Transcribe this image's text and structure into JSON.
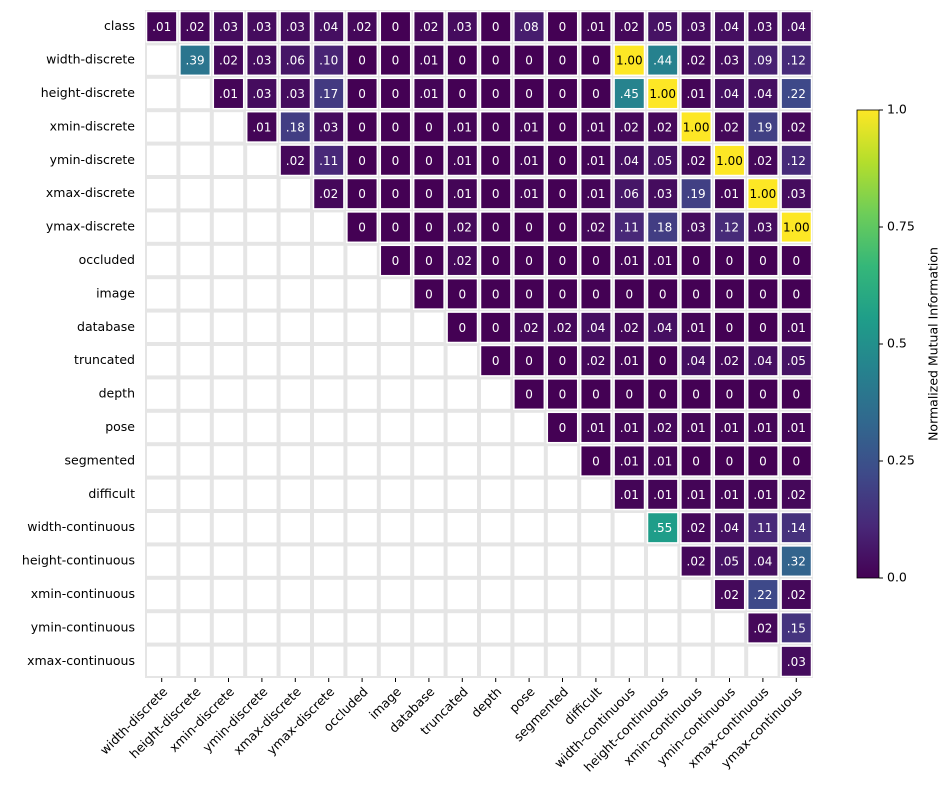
{
  "chart_data": {
    "type": "heatmap",
    "rows": [
      "class",
      "width-discrete",
      "height-discrete",
      "xmin-discrete",
      "ymin-discrete",
      "xmax-discrete",
      "ymax-discrete",
      "occluded",
      "image",
      "database",
      "truncated",
      "depth",
      "pose",
      "segmented",
      "difficult",
      "width-continuous",
      "height-continuous",
      "xmin-continuous",
      "ymin-continuous",
      "xmax-continuous"
    ],
    "columns": [
      "width-discrete",
      "height-discrete",
      "xmin-discrete",
      "ymin-discrete",
      "xmax-discrete",
      "ymax-discrete",
      "occluded",
      "image",
      "database",
      "truncated",
      "depth",
      "pose",
      "segmented",
      "difficult",
      "width-continuous",
      "height-continuous",
      "xmin-continuous",
      "ymin-continuous",
      "xmax-continuous",
      "ymax-continuous"
    ],
    "values": [
      [
        0.01,
        0.02,
        0.03,
        0.03,
        0.03,
        0.04,
        0.02,
        0,
        0.02,
        0.03,
        0,
        0.08,
        0,
        0.01,
        0.02,
        0.05,
        0.03,
        0.04,
        0.03,
        0.04
      ],
      [
        null,
        0.39,
        0.02,
        0.03,
        0.06,
        0.1,
        0,
        0,
        0.01,
        0,
        0,
        0,
        0,
        0,
        1.0,
        0.44,
        0.02,
        0.03,
        0.09,
        0.12
      ],
      [
        null,
        null,
        0.01,
        0.03,
        0.03,
        0.17,
        0,
        0,
        0.01,
        0,
        0,
        0,
        0,
        0,
        0.45,
        1.0,
        0.01,
        0.04,
        0.04,
        0.22
      ],
      [
        null,
        null,
        null,
        0.01,
        0.18,
        0.03,
        0,
        0,
        0,
        0.01,
        0,
        0.01,
        0,
        0.01,
        0.02,
        0.02,
        1.0,
        0.02,
        0.19,
        0.02
      ],
      [
        null,
        null,
        null,
        null,
        0.02,
        0.11,
        0,
        0,
        0,
        0.01,
        0,
        0.01,
        0,
        0.01,
        0.04,
        0.05,
        0.02,
        1.0,
        0.02,
        0.12
      ],
      [
        null,
        null,
        null,
        null,
        null,
        0.02,
        0,
        0,
        0,
        0.01,
        0,
        0.01,
        0,
        0.01,
        0.06,
        0.03,
        0.19,
        0.01,
        1.0,
        0.03
      ],
      [
        null,
        null,
        null,
        null,
        null,
        null,
        0,
        0,
        0,
        0.02,
        0,
        0,
        0,
        0.02,
        0.11,
        0.18,
        0.03,
        0.12,
        0.03,
        1.0
      ],
      [
        null,
        null,
        null,
        null,
        null,
        null,
        null,
        0,
        0,
        0.02,
        0,
        0,
        0,
        0,
        0.01,
        0.01,
        0,
        0,
        0,
        0
      ],
      [
        null,
        null,
        null,
        null,
        null,
        null,
        null,
        null,
        0,
        0,
        0,
        0,
        0,
        0,
        0,
        0,
        0,
        0,
        0,
        0
      ],
      [
        null,
        null,
        null,
        null,
        null,
        null,
        null,
        null,
        null,
        0,
        0,
        0.02,
        0.02,
        0.04,
        0.02,
        0.04,
        0.01,
        0,
        0,
        0.01
      ],
      [
        null,
        null,
        null,
        null,
        null,
        null,
        null,
        null,
        null,
        null,
        0,
        0,
        0,
        0.02,
        0.01,
        0,
        0.04,
        0.02,
        0.04,
        0.05
      ],
      [
        null,
        null,
        null,
        null,
        null,
        null,
        null,
        null,
        null,
        null,
        null,
        0,
        0,
        0,
        0,
        0,
        0,
        0,
        0,
        0
      ],
      [
        null,
        null,
        null,
        null,
        null,
        null,
        null,
        null,
        null,
        null,
        null,
        null,
        0,
        0.01,
        0.01,
        0.02,
        0.01,
        0.01,
        0.01,
        0.01
      ],
      [
        null,
        null,
        null,
        null,
        null,
        null,
        null,
        null,
        null,
        null,
        null,
        null,
        null,
        0,
        0.01,
        0.01,
        0,
        0,
        0,
        0
      ],
      [
        null,
        null,
        null,
        null,
        null,
        null,
        null,
        null,
        null,
        null,
        null,
        null,
        null,
        null,
        0.01,
        0.01,
        0.01,
        0.01,
        0.01,
        0.02
      ],
      [
        null,
        null,
        null,
        null,
        null,
        null,
        null,
        null,
        null,
        null,
        null,
        null,
        null,
        null,
        null,
        0.55,
        0.02,
        0.04,
        0.11,
        0.14
      ],
      [
        null,
        null,
        null,
        null,
        null,
        null,
        null,
        null,
        null,
        null,
        null,
        null,
        null,
        null,
        null,
        null,
        0.02,
        0.05,
        0.04,
        0.32
      ],
      [
        null,
        null,
        null,
        null,
        null,
        null,
        null,
        null,
        null,
        null,
        null,
        null,
        null,
        null,
        null,
        null,
        null,
        0.02,
        0.22,
        0.02
      ],
      [
        null,
        null,
        null,
        null,
        null,
        null,
        null,
        null,
        null,
        null,
        null,
        null,
        null,
        null,
        null,
        null,
        null,
        null,
        0.02,
        0.15
      ],
      [
        null,
        null,
        null,
        null,
        null,
        null,
        null,
        null,
        null,
        null,
        null,
        null,
        null,
        null,
        null,
        null,
        null,
        null,
        null,
        0.03
      ]
    ],
    "value_labels": [
      [
        ".01",
        ".02",
        ".03",
        ".03",
        ".03",
        ".04",
        ".02",
        "0",
        ".02",
        ".03",
        "0",
        ".08",
        "0",
        ".01",
        ".02",
        ".05",
        ".03",
        ".04",
        ".03",
        ".04"
      ],
      [
        null,
        ".39",
        ".02",
        ".03",
        ".06",
        ".10",
        "0",
        "0",
        ".01",
        "0",
        "0",
        "0",
        "0",
        "0",
        "1.00",
        ".44",
        ".02",
        ".03",
        ".09",
        ".12"
      ],
      [
        null,
        null,
        ".01",
        ".03",
        ".03",
        ".17",
        "0",
        "0",
        ".01",
        "0",
        "0",
        "0",
        "0",
        "0",
        ".45",
        "1.00",
        ".01",
        ".04",
        ".04",
        ".22"
      ],
      [
        null,
        null,
        null,
        ".01",
        ".18",
        ".03",
        "0",
        "0",
        "0",
        ".01",
        "0",
        ".01",
        "0",
        ".01",
        ".02",
        ".02",
        "1.00",
        ".02",
        ".19",
        ".02"
      ],
      [
        null,
        null,
        null,
        null,
        ".02",
        ".11",
        "0",
        "0",
        "0",
        ".01",
        "0",
        ".01",
        "0",
        ".01",
        ".04",
        ".05",
        ".02",
        "1.00",
        ".02",
        ".12"
      ],
      [
        null,
        null,
        null,
        null,
        null,
        ".02",
        "0",
        "0",
        "0",
        ".01",
        "0",
        ".01",
        "0",
        ".01",
        ".06",
        ".03",
        ".19",
        ".01",
        "1.00",
        ".03"
      ],
      [
        null,
        null,
        null,
        null,
        null,
        null,
        "0",
        "0",
        "0",
        ".02",
        "0",
        "0",
        "0",
        ".02",
        ".11",
        ".18",
        ".03",
        ".12",
        ".03",
        "1.00"
      ],
      [
        null,
        null,
        null,
        null,
        null,
        null,
        null,
        "0",
        "0",
        ".02",
        "0",
        "0",
        "0",
        "0",
        ".01",
        ".01",
        "0",
        "0",
        "0",
        "0"
      ],
      [
        null,
        null,
        null,
        null,
        null,
        null,
        null,
        null,
        "0",
        "0",
        "0",
        "0",
        "0",
        "0",
        "0",
        "0",
        "0",
        "0",
        "0",
        "0"
      ],
      [
        null,
        null,
        null,
        null,
        null,
        null,
        null,
        null,
        null,
        "0",
        "0",
        ".02",
        ".02",
        ".04",
        ".02",
        ".04",
        ".01",
        "0",
        "0",
        ".01"
      ],
      [
        null,
        null,
        null,
        null,
        null,
        null,
        null,
        null,
        null,
        null,
        "0",
        "0",
        "0",
        ".02",
        ".01",
        "0",
        ".04",
        ".02",
        ".04",
        ".05"
      ],
      [
        null,
        null,
        null,
        null,
        null,
        null,
        null,
        null,
        null,
        null,
        null,
        "0",
        "0",
        "0",
        "0",
        "0",
        "0",
        "0",
        "0",
        "0"
      ],
      [
        null,
        null,
        null,
        null,
        null,
        null,
        null,
        null,
        null,
        null,
        null,
        null,
        "0",
        ".01",
        ".01",
        ".02",
        ".01",
        ".01",
        ".01",
        ".01"
      ],
      [
        null,
        null,
        null,
        null,
        null,
        null,
        null,
        null,
        null,
        null,
        null,
        null,
        null,
        "0",
        ".01",
        ".01",
        "0",
        "0",
        "0",
        "0"
      ],
      [
        null,
        null,
        null,
        null,
        null,
        null,
        null,
        null,
        null,
        null,
        null,
        null,
        null,
        null,
        ".01",
        ".01",
        ".01",
        ".01",
        ".01",
        ".02"
      ],
      [
        null,
        null,
        null,
        null,
        null,
        null,
        null,
        null,
        null,
        null,
        null,
        null,
        null,
        null,
        null,
        ".55",
        ".02",
        ".04",
        ".11",
        ".14"
      ],
      [
        null,
        null,
        null,
        null,
        null,
        null,
        null,
        null,
        null,
        null,
        null,
        null,
        null,
        null,
        null,
        null,
        ".02",
        ".05",
        ".04",
        ".32"
      ],
      [
        null,
        null,
        null,
        null,
        null,
        null,
        null,
        null,
        null,
        null,
        null,
        null,
        null,
        null,
        null,
        null,
        null,
        ".02",
        ".22",
        ".02"
      ],
      [
        null,
        null,
        null,
        null,
        null,
        null,
        null,
        null,
        null,
        null,
        null,
        null,
        null,
        null,
        null,
        null,
        null,
        null,
        ".02",
        ".15"
      ],
      [
        null,
        null,
        null,
        null,
        null,
        null,
        null,
        null,
        null,
        null,
        null,
        null,
        null,
        null,
        null,
        null,
        null,
        null,
        null,
        ".03"
      ]
    ],
    "colormap": "viridis",
    "clim": [
      0,
      1
    ],
    "colorbar_label": "Normalized Mutual Information",
    "colorbar_ticks": [
      {
        "value": 0,
        "label": "0.0"
      },
      0.25,
      0.5,
      0.75,
      {
        "value": 1,
        "label": "1.0"
      }
    ]
  }
}
